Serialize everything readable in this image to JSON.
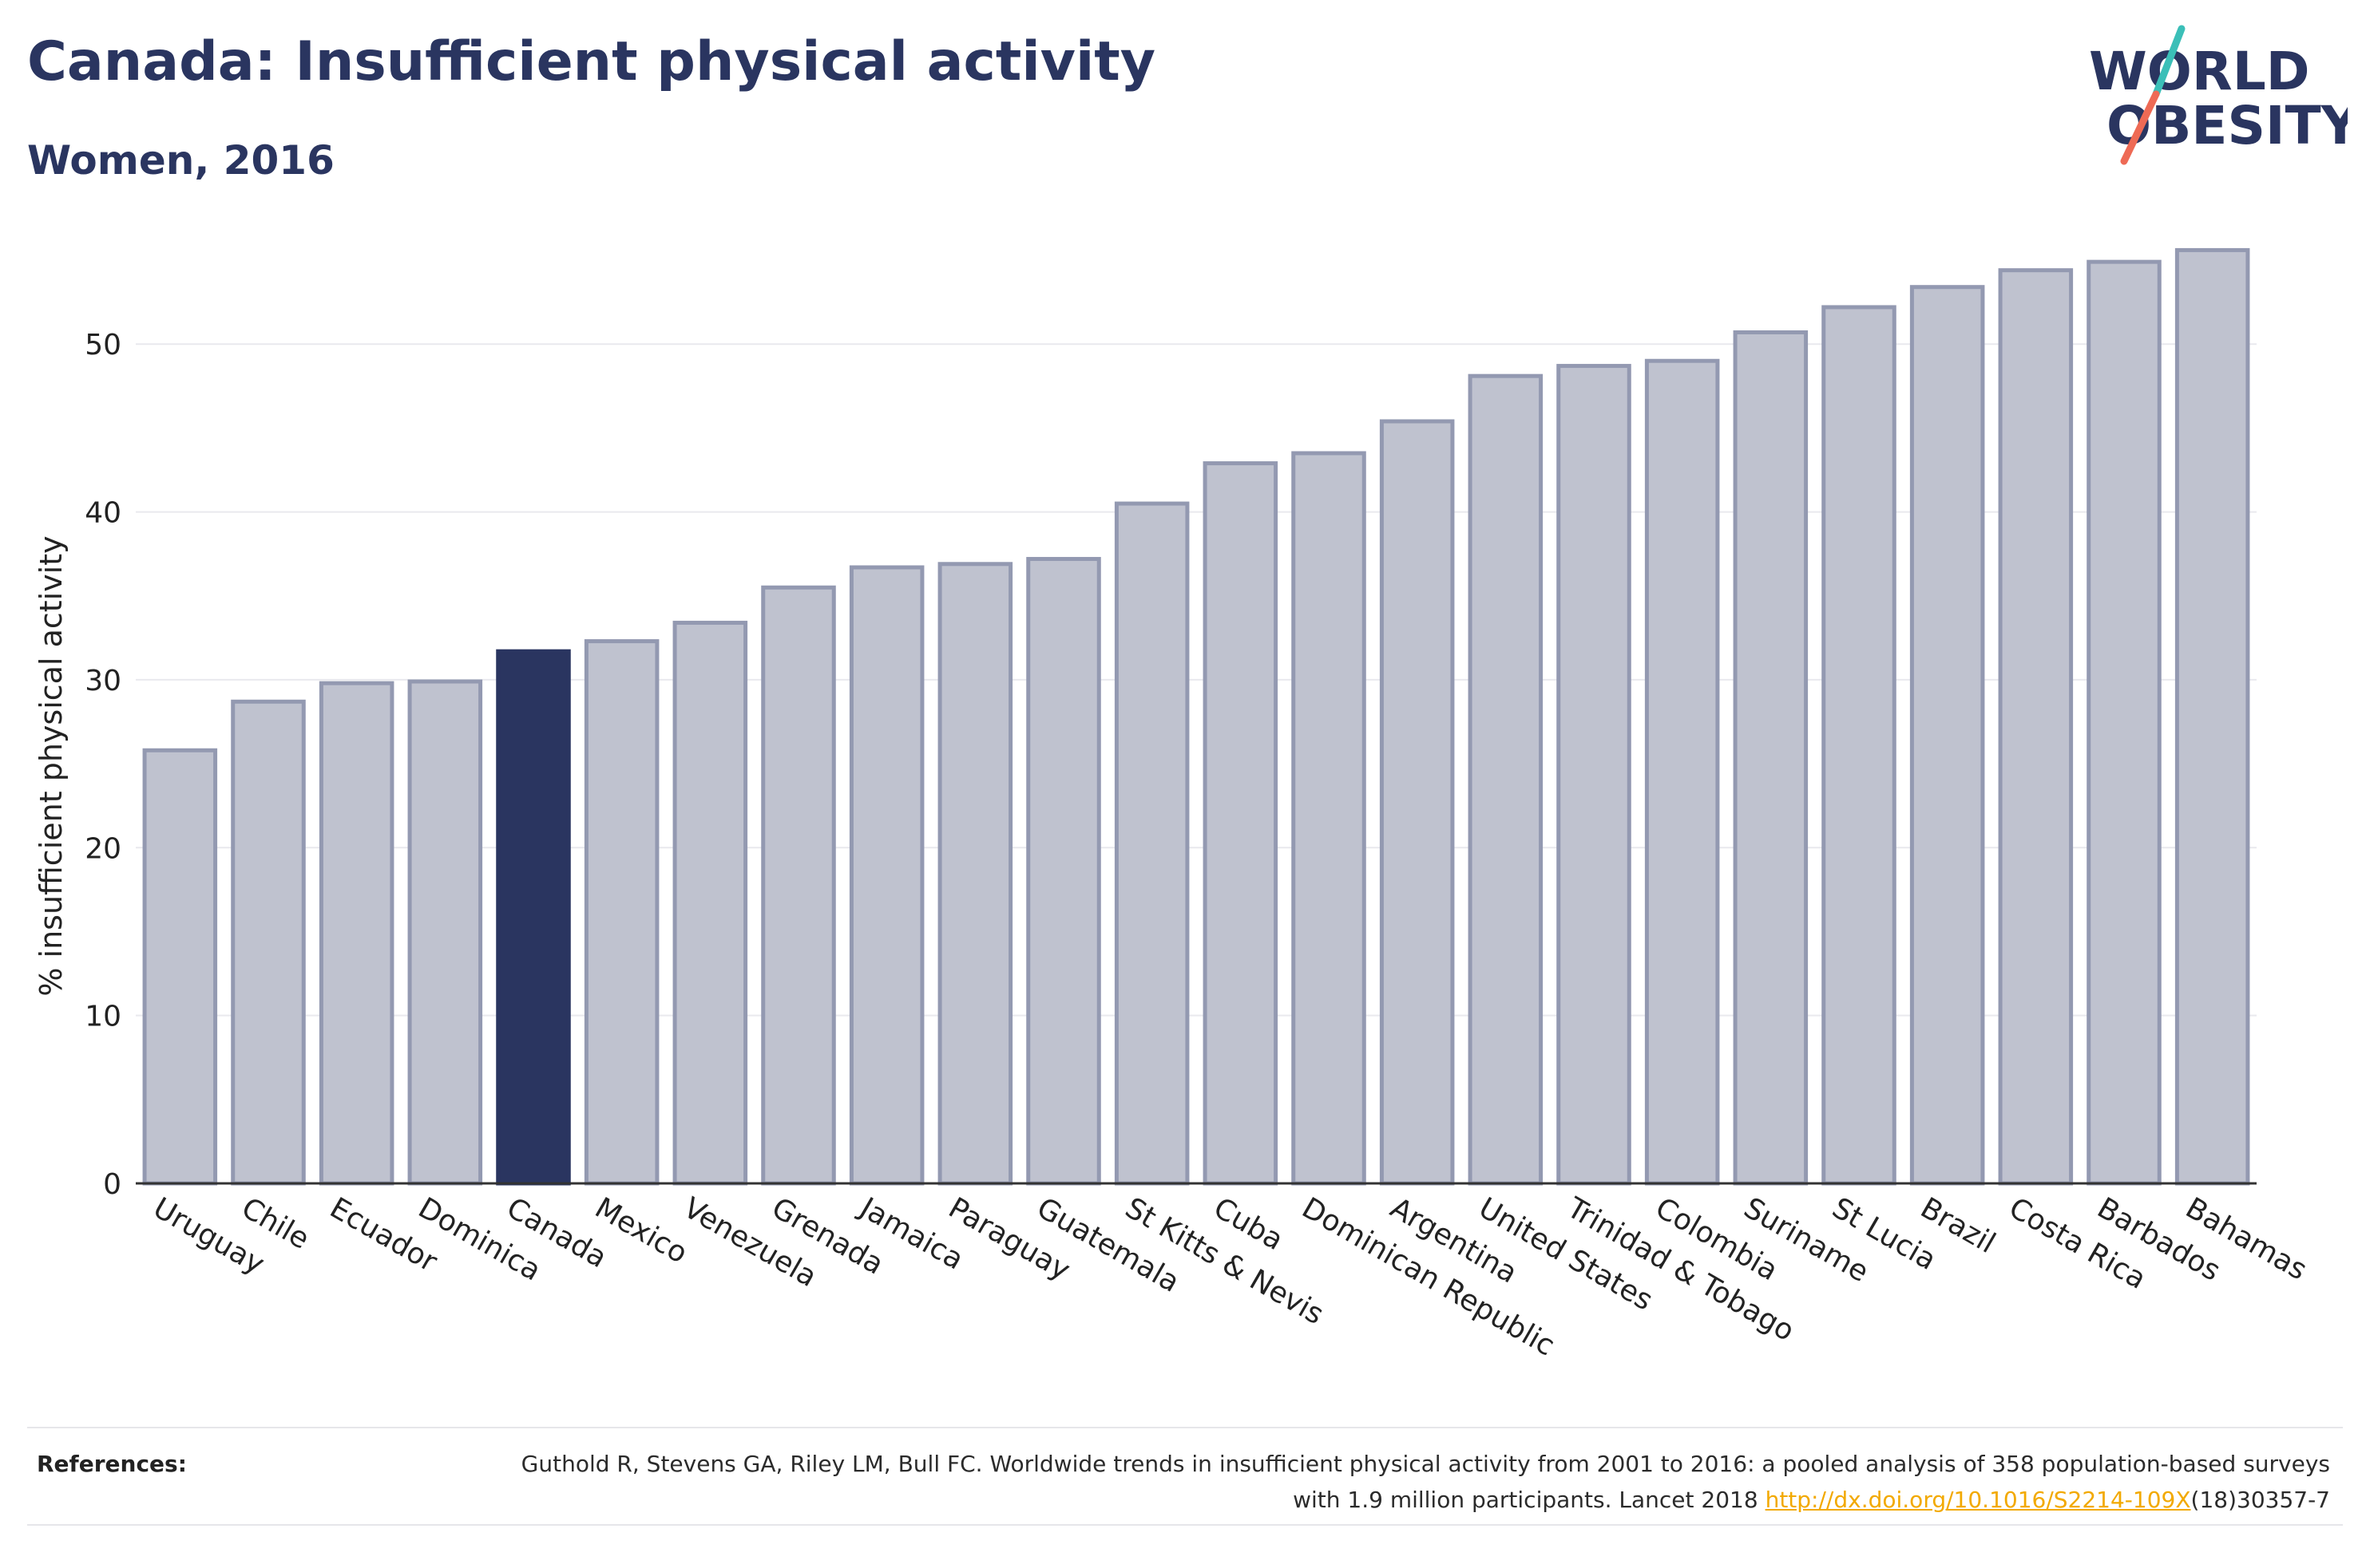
{
  "header": {
    "title": "Canada: Insufficient physical activity",
    "subtitle": "Women, 2016"
  },
  "logo": {
    "line1": "WORLD",
    "line2": "OBESITY"
  },
  "colors": {
    "bar": "#bfc2cf",
    "bar_border": "#9399b1",
    "highlight": "#2a3560",
    "grid": "#e9e9ee",
    "axis": "#333333",
    "logo_text": "#2a3560",
    "logo_teal": "#3bbfb8",
    "logo_coral": "#ee6a55",
    "link": "#f2a900"
  },
  "chart_data": {
    "type": "bar",
    "ylabel": "% insufficient physical activity",
    "ylim": [
      0,
      56
    ],
    "yticks": [
      0,
      10,
      20,
      30,
      40,
      50
    ],
    "grid": true,
    "highlight": "Canada",
    "categories": [
      "Uruguay",
      "Chile",
      "Ecuador",
      "Dominica",
      "Canada",
      "Mexico",
      "Venezuela",
      "Grenada",
      "Jamaica",
      "Paraguay",
      "Guatemala",
      "St Kitts & Nevis",
      "Cuba",
      "Dominican Republic",
      "Argentina",
      "United States",
      "Trinidad & Tobago",
      "Colombia",
      "Suriname",
      "St Lucia",
      "Brazil",
      "Costa Rica",
      "Barbados",
      "Bahamas"
    ],
    "values": [
      25.8,
      28.7,
      29.8,
      29.9,
      31.7,
      32.3,
      33.4,
      35.5,
      36.7,
      36.9,
      37.2,
      40.5,
      42.9,
      43.5,
      45.4,
      48.1,
      48.7,
      49.0,
      50.7,
      52.2,
      53.4,
      54.4,
      54.9,
      55.6
    ]
  },
  "references": {
    "label": "References:",
    "text_before": "Guthold R, Stevens GA, Riley LM, Bull FC. Worldwide trends in insufficient physical activity from 2001 to 2016: a pooled analysis of 358 population-based surveys with 1.9 million participants. Lancet 2018 ",
    "link_text": "http://dx.doi.org/10.1016/S2214-109X",
    "text_after": "(18)30357-7"
  }
}
